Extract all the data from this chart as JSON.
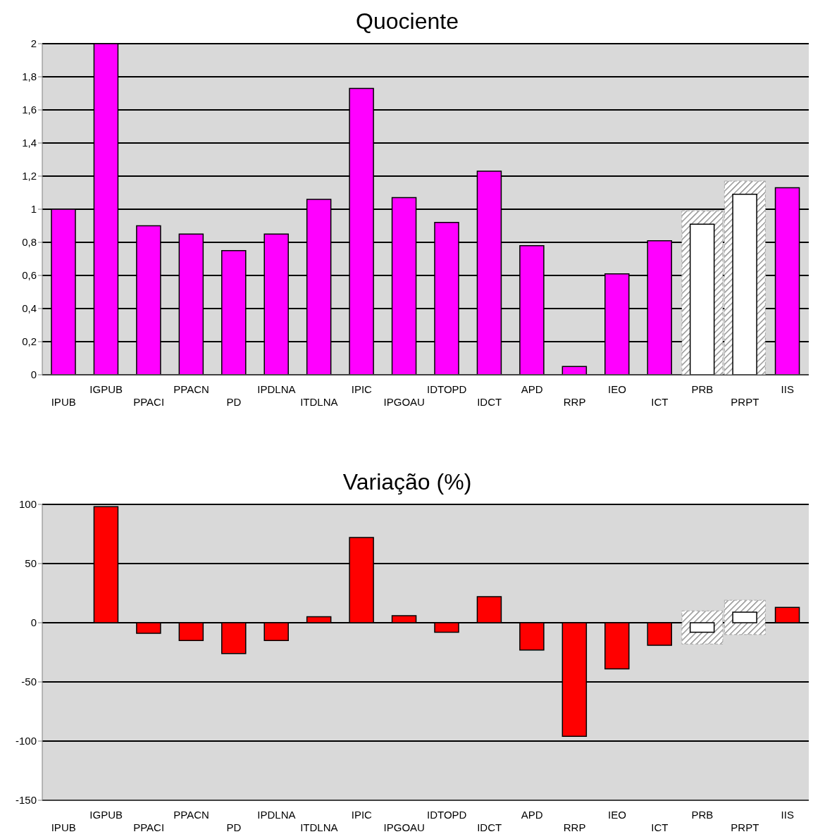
{
  "chart_data": [
    {
      "type": "bar",
      "title": "Quociente",
      "categories": [
        "IPUB",
        "IGPUB",
        "PPACI",
        "PPACN",
        "PD",
        "IPDLNA",
        "ITDLNA",
        "IPIC",
        "IPGOAU",
        "IDTOPD",
        "IDCT",
        "APD",
        "RRP",
        "IEO",
        "ICT",
        "PRB",
        "PRPT",
        "IIS"
      ],
      "values": [
        1.0,
        2.0,
        0.9,
        0.85,
        0.75,
        0.85,
        1.06,
        1.73,
        1.07,
        0.92,
        1.23,
        0.78,
        0.05,
        0.61,
        0.81,
        0.91,
        1.09,
        1.13
      ],
      "colors": [
        "#ff00ff",
        "#ff00ff",
        "#ff00ff",
        "#ff00ff",
        "#ff00ff",
        "#ff00ff",
        "#ff00ff",
        "#ff00ff",
        "#ff00ff",
        "#ff00ff",
        "#ff00ff",
        "#ff00ff",
        "#ff00ff",
        "#ff00ff",
        "#ff00ff",
        "#ffffff",
        "#ffffff",
        "#ff00ff"
      ],
      "ylim": [
        0,
        2
      ],
      "yticks": [
        0,
        {
          "value": 0.2,
          "label": "0,2"
        },
        {
          "value": 0.4,
          "label": "0,4"
        },
        {
          "value": 0.6,
          "label": "0,6"
        },
        {
          "value": 0.8,
          "label": "0,8"
        },
        1,
        {
          "value": 1.2,
          "label": "1,2"
        },
        {
          "value": 1.4,
          "label": "1,4"
        },
        {
          "value": 1.6,
          "label": "1,6"
        },
        {
          "value": 1.8,
          "label": "1,8"
        },
        2
      ],
      "grid": "y",
      "legend": false,
      "bands": [
        {
          "axis": "x",
          "from": "PRB",
          "to": "PRB",
          "color": "#a6a6a6"
        },
        {
          "axis": "x",
          "from": "PRPT",
          "to": "PRPT",
          "color": "#a6a6a6"
        }
      ]
    },
    {
      "type": "bar",
      "title": "Variação (%)",
      "categories": [
        "IPUB",
        "IGPUB",
        "PPACI",
        "PPACN",
        "PD",
        "IPDLNA",
        "ITDLNA",
        "IPIC",
        "IPGOAU",
        "IDTOPD",
        "IDCT",
        "APD",
        "RRP",
        "IEO",
        "ICT",
        "PRB",
        "PRPT",
        "IIS"
      ],
      "values": [
        0,
        98,
        -9,
        -15,
        -26,
        -15,
        5,
        72,
        6,
        -8,
        22,
        -23,
        -96,
        -39,
        -19,
        -8,
        9,
        13
      ],
      "colors": [
        "#ff0000",
        "#ff0000",
        "#ff0000",
        "#ff0000",
        "#ff0000",
        "#ff0000",
        "#ff0000",
        "#ff0000",
        "#ff0000",
        "#ff0000",
        "#ff0000",
        "#ff0000",
        "#ff0000",
        "#ff0000",
        "#ff0000",
        "#ffffff",
        "#ffffff",
        "#ff0000"
      ],
      "ylim": [
        -150,
        100
      ],
      "yticks": [
        -150,
        -100,
        -50,
        0,
        50,
        100
      ],
      "grid": "y",
      "legend": false,
      "bands": [
        {
          "axis": "x",
          "from": "PRB",
          "to": "PRB",
          "color": "#a6a6a6"
        },
        {
          "axis": "x",
          "from": "PRPT",
          "to": "PRPT",
          "color": "#a6a6a6"
        }
      ]
    }
  ]
}
